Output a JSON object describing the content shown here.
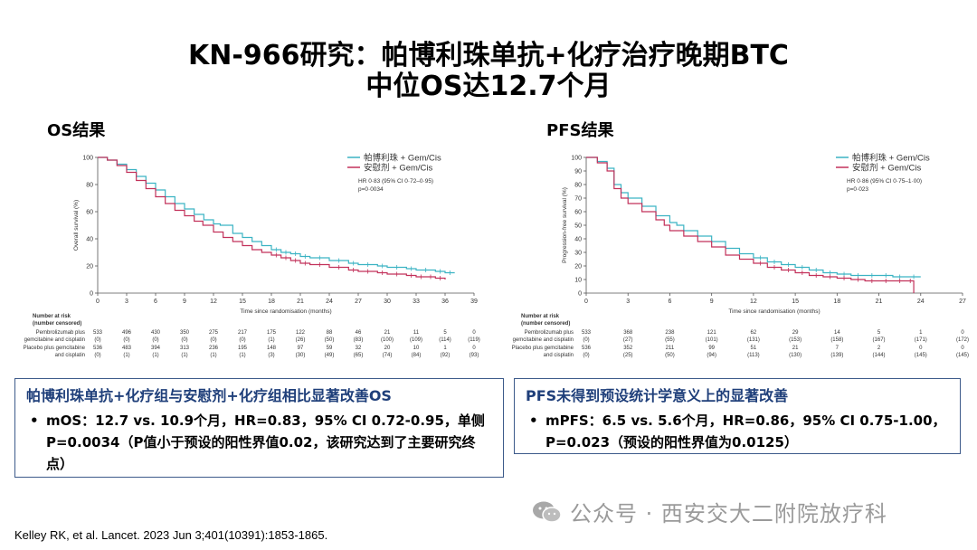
{
  "title_line1": "KN-966研究：帕博利珠单抗+化疗治疗晚期BTC",
  "title_line2": "中位OS达12.7个月",
  "os_panel_label": "OS结果",
  "pfs_panel_label": "PFS结果",
  "os_summary": {
    "heading": "帕博利珠单抗+化疗组与安慰剂+化疗组相比显著改善OS",
    "bullet": "mOS：12.7 vs. 10.9个月，HR=0.83，95% CI 0.72-0.95，单侧P=0.0034（P值小于预设的阳性界值0.02，该研究达到了主要研究终点）"
  },
  "pfs_summary": {
    "heading": "PFS未得到预设统计学意义上的显著改善",
    "bullet": "mPFS：6.5 vs. 5.6个月，HR=0.86，95% CI 0.75-1.00，P=0.023（预设的阳性界值为0.0125）"
  },
  "bullet_symbol": "•",
  "citation": "Kelley RK, et al. Lancet. 2023 Jun 3;401(10391):1853-1865.",
  "watermark": "公众号 · 西安交大二附院放疗科",
  "colors": {
    "pembro": "#3bb3c3",
    "placebo": "#c2315a",
    "box_border": "#3d5a8a",
    "box_heading": "#1f3f7a"
  },
  "chart_data": [
    {
      "type": "line",
      "panel": "os",
      "step": true,
      "xlabel": "Time since randomisation (months)",
      "ylabel": "Overall survival (%)",
      "xlim": [
        0,
        39
      ],
      "ylim": [
        0,
        100
      ],
      "xticks": [
        0,
        3,
        6,
        9,
        12,
        15,
        18,
        21,
        24,
        27,
        30,
        33,
        36,
        39
      ],
      "yticks": [
        0,
        20,
        40,
        60,
        80,
        100
      ],
      "legend": [
        "帕博利珠 + Gem/Cis",
        "安慰剂 + Gem/Cis"
      ],
      "annotation": [
        "HR 0·83 (95% CI 0·72–0·95)",
        "p=0·0034"
      ],
      "series": [
        {
          "name": "帕博利珠 + Gem/Cis",
          "color": "#3bb3c3",
          "x": [
            0,
            1,
            2,
            3,
            4,
            5,
            6,
            7,
            8,
            9,
            10,
            11,
            12,
            12.7,
            14,
            15,
            16,
            17,
            18,
            19,
            20,
            21,
            22,
            24,
            26,
            27,
            29,
            30,
            32,
            33,
            35,
            36,
            37
          ],
          "y": [
            100,
            98,
            95,
            91,
            86,
            81,
            76,
            71,
            66,
            62,
            58,
            54,
            51,
            50,
            44,
            41,
            38,
            35,
            32,
            30,
            29,
            27,
            26,
            24,
            22,
            21,
            20,
            19,
            18,
            17,
            16,
            15,
            15
          ]
        },
        {
          "name": "安慰剂 + Gem/Cis",
          "color": "#c2315a",
          "x": [
            0,
            1,
            2,
            3,
            4,
            5,
            6,
            7,
            8,
            9,
            10,
            10.9,
            12,
            13,
            14,
            15,
            16,
            17,
            18,
            19,
            20,
            21,
            22,
            24,
            26,
            27,
            29,
            30,
            32,
            33,
            34,
            35,
            36
          ],
          "y": [
            100,
            98,
            94,
            89,
            83,
            77,
            71,
            66,
            61,
            57,
            53,
            50,
            45,
            41,
            38,
            35,
            32,
            30,
            28,
            26,
            24,
            22,
            21,
            19,
            17,
            16,
            15,
            14,
            13,
            12,
            12,
            11,
            10
          ]
        }
      ],
      "risk_table": {
        "header": [
          "Number at risk",
          "(number censored)"
        ],
        "rows": [
          {
            "label": "Pembrolizumab plus",
            "values": [
              "533",
              "496",
              "430",
              "350",
              "275",
              "217",
              "175",
              "122",
              "88",
              "46",
              "21",
              "11",
              "5",
              "0"
            ]
          },
          {
            "label": "gemcitabine and cisplatin",
            "values": [
              "(0)",
              "(0)",
              "(0)",
              "(0)",
              "(0)",
              "(0)",
              "(1)",
              "(26)",
              "(50)",
              "(83)",
              "(100)",
              "(109)",
              "(114)",
              "(119)"
            ]
          },
          {
            "label": "Placebo plus gemcitabine",
            "values": [
              "536",
              "483",
              "394",
              "313",
              "236",
              "195",
              "148",
              "97",
              "59",
              "32",
              "20",
              "10",
              "1",
              "0"
            ]
          },
          {
            "label": "and cisplatin",
            "values": [
              "(0)",
              "(1)",
              "(1)",
              "(1)",
              "(1)",
              "(1)",
              "(3)",
              "(30)",
              "(49)",
              "(65)",
              "(74)",
              "(84)",
              "(92)",
              "(93)"
            ]
          }
        ]
      }
    },
    {
      "type": "line",
      "panel": "pfs",
      "step": true,
      "xlabel": "Time since randomisation (months)",
      "ylabel": "Progression-free survival (%)",
      "xlim": [
        0,
        27
      ],
      "ylim": [
        0,
        100
      ],
      "xticks": [
        0,
        3,
        6,
        9,
        12,
        15,
        18,
        21,
        24,
        27
      ],
      "yticks": [
        0,
        10,
        20,
        30,
        40,
        50,
        60,
        70,
        80,
        90,
        100
      ],
      "legend": [
        "帕博利珠 + Gem/Cis",
        "安慰剂 + Gem/Cis"
      ],
      "annotation": [
        "HR 0·86 (95% CI 0·75–1·00)",
        "p=0·023"
      ],
      "series": [
        {
          "name": "帕博利珠 + Gem/Cis",
          "color": "#3bb3c3",
          "x": [
            0,
            0.8,
            1.5,
            2,
            2.5,
            3,
            4,
            5,
            6,
            6.5,
            7,
            8,
            9,
            10,
            11,
            12,
            13,
            14,
            15,
            16,
            17,
            18,
            19,
            20,
            21,
            22,
            23,
            24
          ],
          "y": [
            100,
            97,
            92,
            80,
            74,
            70,
            64,
            57,
            52,
            50,
            46,
            42,
            38,
            33,
            29,
            26,
            23,
            21,
            19,
            17,
            15,
            14,
            13,
            13,
            13,
            12,
            12,
            12
          ]
        },
        {
          "name": "安慰剂 + Gem/Cis",
          "color": "#c2315a",
          "x": [
            0,
            0.8,
            1.5,
            2,
            2.5,
            3,
            4,
            5,
            5.6,
            6,
            7,
            8,
            9,
            10,
            11,
            12,
            13,
            14,
            15,
            16,
            17,
            18,
            19,
            20,
            21,
            22,
            23,
            23.5
          ],
          "y": [
            100,
            96,
            90,
            77,
            70,
            66,
            60,
            54,
            50,
            46,
            42,
            38,
            34,
            28,
            25,
            22,
            19,
            17,
            15,
            13,
            12,
            11,
            10,
            9,
            9,
            9,
            9,
            0
          ]
        }
      ],
      "risk_table": {
        "header": [
          "Number at risk",
          "(number censored)"
        ],
        "rows": [
          {
            "label": "Pembrolizumab plus",
            "values": [
              "533",
              "368",
              "238",
              "121",
              "62",
              "29",
              "14",
              "5",
              "1",
              "0"
            ]
          },
          {
            "label": "gemcitabine and cisplatin",
            "values": [
              "(0)",
              "(27)",
              "(55)",
              "(101)",
              "(131)",
              "(153)",
              "(158)",
              "(167)",
              "(171)",
              "(172)"
            ]
          },
          {
            "label": "Placebo plus gemcitabine",
            "values": [
              "536",
              "352",
              "211",
              "99",
              "51",
              "21",
              "7",
              "2",
              "0",
              "0"
            ]
          },
          {
            "label": "and cisplatin",
            "values": [
              "(0)",
              "(25)",
              "(50)",
              "(94)",
              "(113)",
              "(130)",
              "(139)",
              "(144)",
              "(145)",
              "(145)"
            ]
          }
        ]
      }
    }
  ]
}
